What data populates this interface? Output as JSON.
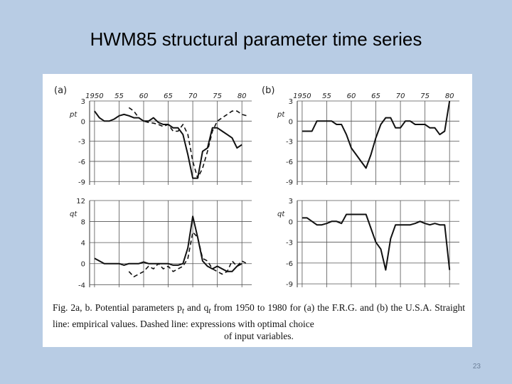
{
  "slide": {
    "title": "HWM85 structural parameter time series",
    "page_number": "23"
  },
  "figure": {
    "caption_lines": [
      "Fig. 2a, b. Potential parameters p",
      "t",
      " and q",
      "t",
      " from 1950 to 1980 for (a) the F.R.G. and (b) the U.S.A. Straight line: empirical values. Dashed line: expressions with optimal choice"
    ],
    "caption_last_line": "of input variables."
  },
  "chart_data": [
    {
      "type": "line",
      "panel": "(a)",
      "ylabel": "pt",
      "x_tick_labels": [
        "1950",
        "55",
        "60",
        "65",
        "70",
        "75",
        "80"
      ],
      "x_ticks": [
        1950,
        1955,
        1960,
        1965,
        1970,
        1975,
        1980
      ],
      "xlim": [
        1949,
        1982
      ],
      "y_tick_labels": [
        "3",
        "0",
        "-3",
        "-6",
        "-9"
      ],
      "y_ticks": [
        3,
        0,
        -3,
        -6,
        -9
      ],
      "ylim": [
        -9.5,
        3
      ],
      "series": [
        {
          "style": "solid",
          "x": [
            1950,
            1951,
            1952,
            1953,
            1954,
            1955,
            1956,
            1957,
            1958,
            1959,
            1960,
            1961,
            1962,
            1963,
            1964,
            1965,
            1966,
            1967,
            1968,
            1969,
            1970,
            1971,
            1972,
            1973,
            1974,
            1975,
            1976,
            1977,
            1978,
            1979,
            1980
          ],
          "y": [
            1.5,
            0.5,
            0,
            0,
            0.3,
            0.8,
            1,
            0.8,
            0.5,
            0.5,
            0,
            0,
            0.5,
            -0.2,
            -0.5,
            -0.5,
            -1,
            -1,
            -2,
            -5,
            -8.5,
            -8.5,
            -4.5,
            -4,
            -1,
            -1,
            -1.5,
            -2,
            -2.5,
            -4,
            -3.5
          ]
        },
        {
          "style": "dashed",
          "x": [
            1957,
            1958,
            1959,
            1960,
            1961,
            1962,
            1963,
            1964,
            1965,
            1966,
            1967,
            1968,
            1969,
            1970,
            1971,
            1972,
            1973,
            1974,
            1975,
            1976,
            1977,
            1978,
            1979,
            1980,
            1981
          ],
          "y": [
            2,
            1.5,
            0.5,
            0,
            -0.2,
            -0.3,
            -0.5,
            -0.8,
            -0.5,
            -1.5,
            -1.5,
            -0.5,
            -2,
            -6,
            -8.5,
            -7,
            -4.5,
            -1.5,
            0,
            0.5,
            1,
            1.5,
            1.5,
            1,
            0.8
          ]
        }
      ]
    },
    {
      "type": "line",
      "panel": "(b)",
      "ylabel": "pt",
      "x_tick_labels": [
        "1950",
        "55",
        "60",
        "65",
        "70",
        "75",
        "80"
      ],
      "x_ticks": [
        1950,
        1955,
        1960,
        1965,
        1970,
        1975,
        1980
      ],
      "xlim": [
        1949,
        1982
      ],
      "y_tick_labels": [
        "3",
        "0",
        "-3",
        "-6",
        "-9"
      ],
      "y_ticks": [
        3,
        0,
        -3,
        -6,
        -9
      ],
      "ylim": [
        -9.5,
        3
      ],
      "series": [
        {
          "style": "solid",
          "x": [
            1950,
            1951,
            1952,
            1953,
            1954,
            1955,
            1956,
            1957,
            1958,
            1959,
            1960,
            1961,
            1962,
            1963,
            1964,
            1965,
            1966,
            1967,
            1968,
            1969,
            1970,
            1971,
            1972,
            1973,
            1974,
            1975,
            1976,
            1977,
            1978,
            1979,
            1980
          ],
          "y": [
            -1.5,
            -1.5,
            -1.5,
            0,
            0,
            0,
            0,
            -0.5,
            -0.5,
            -2,
            -4,
            -5,
            -6,
            -7,
            -5,
            -2.5,
            -0.5,
            0.5,
            0.5,
            -1,
            -1,
            0,
            0,
            -0.5,
            -0.5,
            -0.5,
            -1,
            -1,
            -2,
            -1.5,
            3
          ]
        }
      ]
    },
    {
      "type": "line",
      "panel": "(a)",
      "ylabel": "qt",
      "x_tick_labels": [],
      "x_ticks": [
        1950,
        1955,
        1960,
        1965,
        1970,
        1975,
        1980
      ],
      "xlim": [
        1949,
        1982
      ],
      "y_tick_labels": [
        "12",
        "8",
        "4",
        "0",
        "-4"
      ],
      "y_ticks": [
        12,
        8,
        4,
        0,
        -4
      ],
      "ylim": [
        -4.5,
        12
      ],
      "series": [
        {
          "style": "solid",
          "x": [
            1950,
            1951,
            1952,
            1953,
            1954,
            1955,
            1956,
            1957,
            1958,
            1959,
            1960,
            1961,
            1962,
            1963,
            1964,
            1965,
            1966,
            1967,
            1968,
            1969,
            1970,
            1971,
            1972,
            1973,
            1974,
            1975,
            1976,
            1977,
            1978,
            1979,
            1980
          ],
          "y": [
            1,
            0.5,
            0,
            0,
            0,
            0,
            -0.3,
            0,
            0,
            0,
            0.3,
            0,
            0,
            0,
            0,
            0,
            -0.3,
            -0.3,
            0,
            3,
            9,
            5,
            0.5,
            -0.5,
            -1,
            -0.5,
            -1,
            -1.5,
            -1.5,
            -0.5,
            0
          ]
        },
        {
          "style": "dashed",
          "x": [
            1957,
            1958,
            1959,
            1960,
            1961,
            1962,
            1963,
            1964,
            1965,
            1966,
            1967,
            1968,
            1969,
            1970,
            1971,
            1972,
            1973,
            1974,
            1975,
            1976,
            1977,
            1978,
            1979,
            1980,
            1981
          ],
          "y": [
            -1.5,
            -2.5,
            -2,
            -1.5,
            -0.5,
            -1,
            0,
            -1,
            -0.5,
            -1.5,
            -1,
            -0.5,
            1,
            6,
            5,
            1,
            0.5,
            -1,
            -1.5,
            -2,
            -1.5,
            0.5,
            -0.5,
            0.5,
            0
          ]
        }
      ]
    },
    {
      "type": "line",
      "panel": "(b)",
      "ylabel": "qt",
      "x_tick_labels": [],
      "x_ticks": [
        1950,
        1955,
        1960,
        1965,
        1970,
        1975,
        1980
      ],
      "xlim": [
        1949,
        1982
      ],
      "y_tick_labels": [
        "3",
        "0",
        "-3",
        "-6",
        "-9"
      ],
      "y_ticks": [
        3,
        0,
        -3,
        -6,
        -9
      ],
      "ylim": [
        -9.5,
        3
      ],
      "series": [
        {
          "style": "solid",
          "x": [
            1950,
            1951,
            1952,
            1953,
            1954,
            1955,
            1956,
            1957,
            1958,
            1959,
            1960,
            1961,
            1962,
            1963,
            1964,
            1965,
            1966,
            1967,
            1968,
            1969,
            1970,
            1971,
            1972,
            1973,
            1974,
            1975,
            1976,
            1977,
            1978,
            1979,
            1980
          ],
          "y": [
            0.5,
            0.5,
            0,
            -0.5,
            -0.5,
            -0.3,
            0,
            0,
            -0.3,
            1,
            1,
            1,
            1,
            1,
            -1,
            -3,
            -4,
            -7,
            -2.5,
            -0.5,
            -0.5,
            -0.5,
            -0.5,
            -0.3,
            0,
            -0.3,
            -0.5,
            -0.3,
            -0.5,
            -0.5,
            -7
          ]
        }
      ]
    }
  ]
}
